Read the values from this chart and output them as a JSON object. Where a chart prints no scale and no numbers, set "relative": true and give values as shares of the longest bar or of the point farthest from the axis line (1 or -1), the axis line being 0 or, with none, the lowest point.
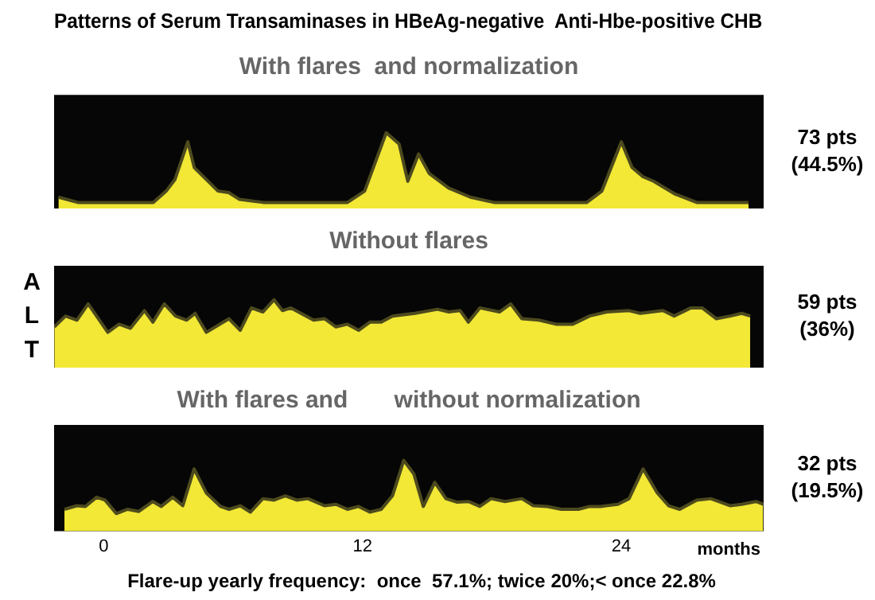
{
  "chart_data": [
    {
      "type": "area",
      "title": "Patterns of Serum Transaminases in HBeAg-negative  Anti-Hbe-positive CHB",
      "subtitle": "With flares  and normalization",
      "relative": true,
      "tick_labels": false,
      "xlim": [
        -2.3,
        30.6
      ],
      "annotations": [
        "73 pts (44.5%)"
      ],
      "series": [
        {
          "color": "#f2e835",
          "x": [
            -2.1,
            -1.2,
            2.3,
            2.9,
            3.3,
            3.9,
            4.2,
            5.3,
            5.8,
            6.3,
            7.4,
            11.3,
            12.1,
            13.1,
            13.7,
            14.1,
            14.6,
            15.1,
            16.0,
            17.0,
            18.1,
            22.4,
            23.1,
            24.0,
            24.5,
            25.0,
            25.5,
            26.5,
            27.5,
            29.9
          ],
          "values": [
            0.15,
            0.08,
            0.08,
            0.23,
            0.38,
            0.88,
            0.54,
            0.23,
            0.21,
            0.12,
            0.08,
            0.08,
            0.23,
            1.0,
            0.85,
            0.36,
            0.72,
            0.46,
            0.27,
            0.15,
            0.08,
            0.08,
            0.23,
            0.88,
            0.54,
            0.42,
            0.36,
            0.19,
            0.08,
            0.08
          ]
        }
      ]
    },
    {
      "type": "area",
      "title": "Without flares",
      "ylabel": "ALT",
      "relative": true,
      "tick_labels": false,
      "xlim": [
        -2.3,
        30.6
      ],
      "annotations": [
        "59 pts (36%)"
      ],
      "series": [
        {
          "color": "#f2e835",
          "x": [
            -2.29,
            -1.77,
            -1.24,
            -0.72,
            0.19,
            0.71,
            1.24,
            1.89,
            2.28,
            2.81,
            3.33,
            3.85,
            4.24,
            4.76,
            5.81,
            6.33,
            6.85,
            7.38,
            7.9,
            8.29,
            8.68,
            9.73,
            10.25,
            10.77,
            11.3,
            11.82,
            12.34,
            12.87,
            13.39,
            14.43,
            15.48,
            16.0,
            16.53,
            16.91,
            17.44,
            18.35,
            18.87,
            19.39,
            20.18,
            20.97,
            21.75,
            22.53,
            23.32,
            24.36,
            24.88,
            25.93,
            26.45,
            27.23,
            27.75,
            28.41,
            29.06,
            29.58,
            29.98
          ],
          "values": [
            0.6,
            0.76,
            0.7,
            0.94,
            0.52,
            0.64,
            0.58,
            0.84,
            0.67,
            0.94,
            0.76,
            0.7,
            0.8,
            0.52,
            0.72,
            0.55,
            0.88,
            0.82,
            1.0,
            0.84,
            0.88,
            0.7,
            0.72,
            0.6,
            0.64,
            0.55,
            0.67,
            0.67,
            0.76,
            0.8,
            0.86,
            0.82,
            0.84,
            0.67,
            0.88,
            0.82,
            0.94,
            0.72,
            0.7,
            0.64,
            0.64,
            0.76,
            0.82,
            0.84,
            0.8,
            0.84,
            0.76,
            0.88,
            0.88,
            0.72,
            0.76,
            0.8,
            0.76
          ]
        }
      ]
    },
    {
      "type": "area",
      "title": "With flares and       without normalization",
      "xlabel": "months",
      "relative": true,
      "tick_labels": "x",
      "xlim": [
        -2.3,
        30.6
      ],
      "xticks": [
        0,
        12,
        24
      ],
      "annotations": [
        "32 pts (19.5%)",
        "Flare-up yearly frequency:  once  57.1%; twice 20%;< once 22.8%"
      ],
      "series": [
        {
          "color": "#f2e835",
          "x": [
            -1.82,
            -1.24,
            -0.85,
            -0.33,
            0.06,
            0.59,
            1.11,
            1.63,
            2.28,
            2.67,
            3.2,
            3.67,
            4.19,
            4.76,
            5.42,
            5.81,
            6.33,
            6.8,
            7.38,
            7.9,
            8.42,
            8.95,
            9.47,
            10.25,
            10.77,
            11.3,
            11.82,
            12.34,
            12.87,
            13.39,
            13.91,
            14.38,
            14.82,
            15.35,
            15.87,
            16.39,
            16.91,
            17.44,
            17.96,
            18.61,
            19.39,
            19.92,
            20.57,
            21.22,
            22.01,
            22.53,
            23.05,
            23.84,
            24.36,
            25.01,
            25.67,
            26.19,
            26.71,
            27.5,
            28.15,
            29.06,
            29.58,
            30.24,
            30.58
          ],
          "values": [
            0.31,
            0.36,
            0.35,
            0.48,
            0.44,
            0.25,
            0.31,
            0.28,
            0.42,
            0.35,
            0.48,
            0.36,
            0.88,
            0.54,
            0.35,
            0.31,
            0.36,
            0.27,
            0.46,
            0.44,
            0.5,
            0.44,
            0.46,
            0.36,
            0.38,
            0.31,
            0.35,
            0.27,
            0.31,
            0.5,
            1.0,
            0.81,
            0.35,
            0.69,
            0.46,
            0.41,
            0.42,
            0.35,
            0.46,
            0.42,
            0.46,
            0.36,
            0.35,
            0.31,
            0.31,
            0.35,
            0.35,
            0.38,
            0.46,
            0.88,
            0.54,
            0.36,
            0.31,
            0.44,
            0.46,
            0.36,
            0.38,
            0.42,
            0.38
          ]
        }
      ]
    }
  ]
}
